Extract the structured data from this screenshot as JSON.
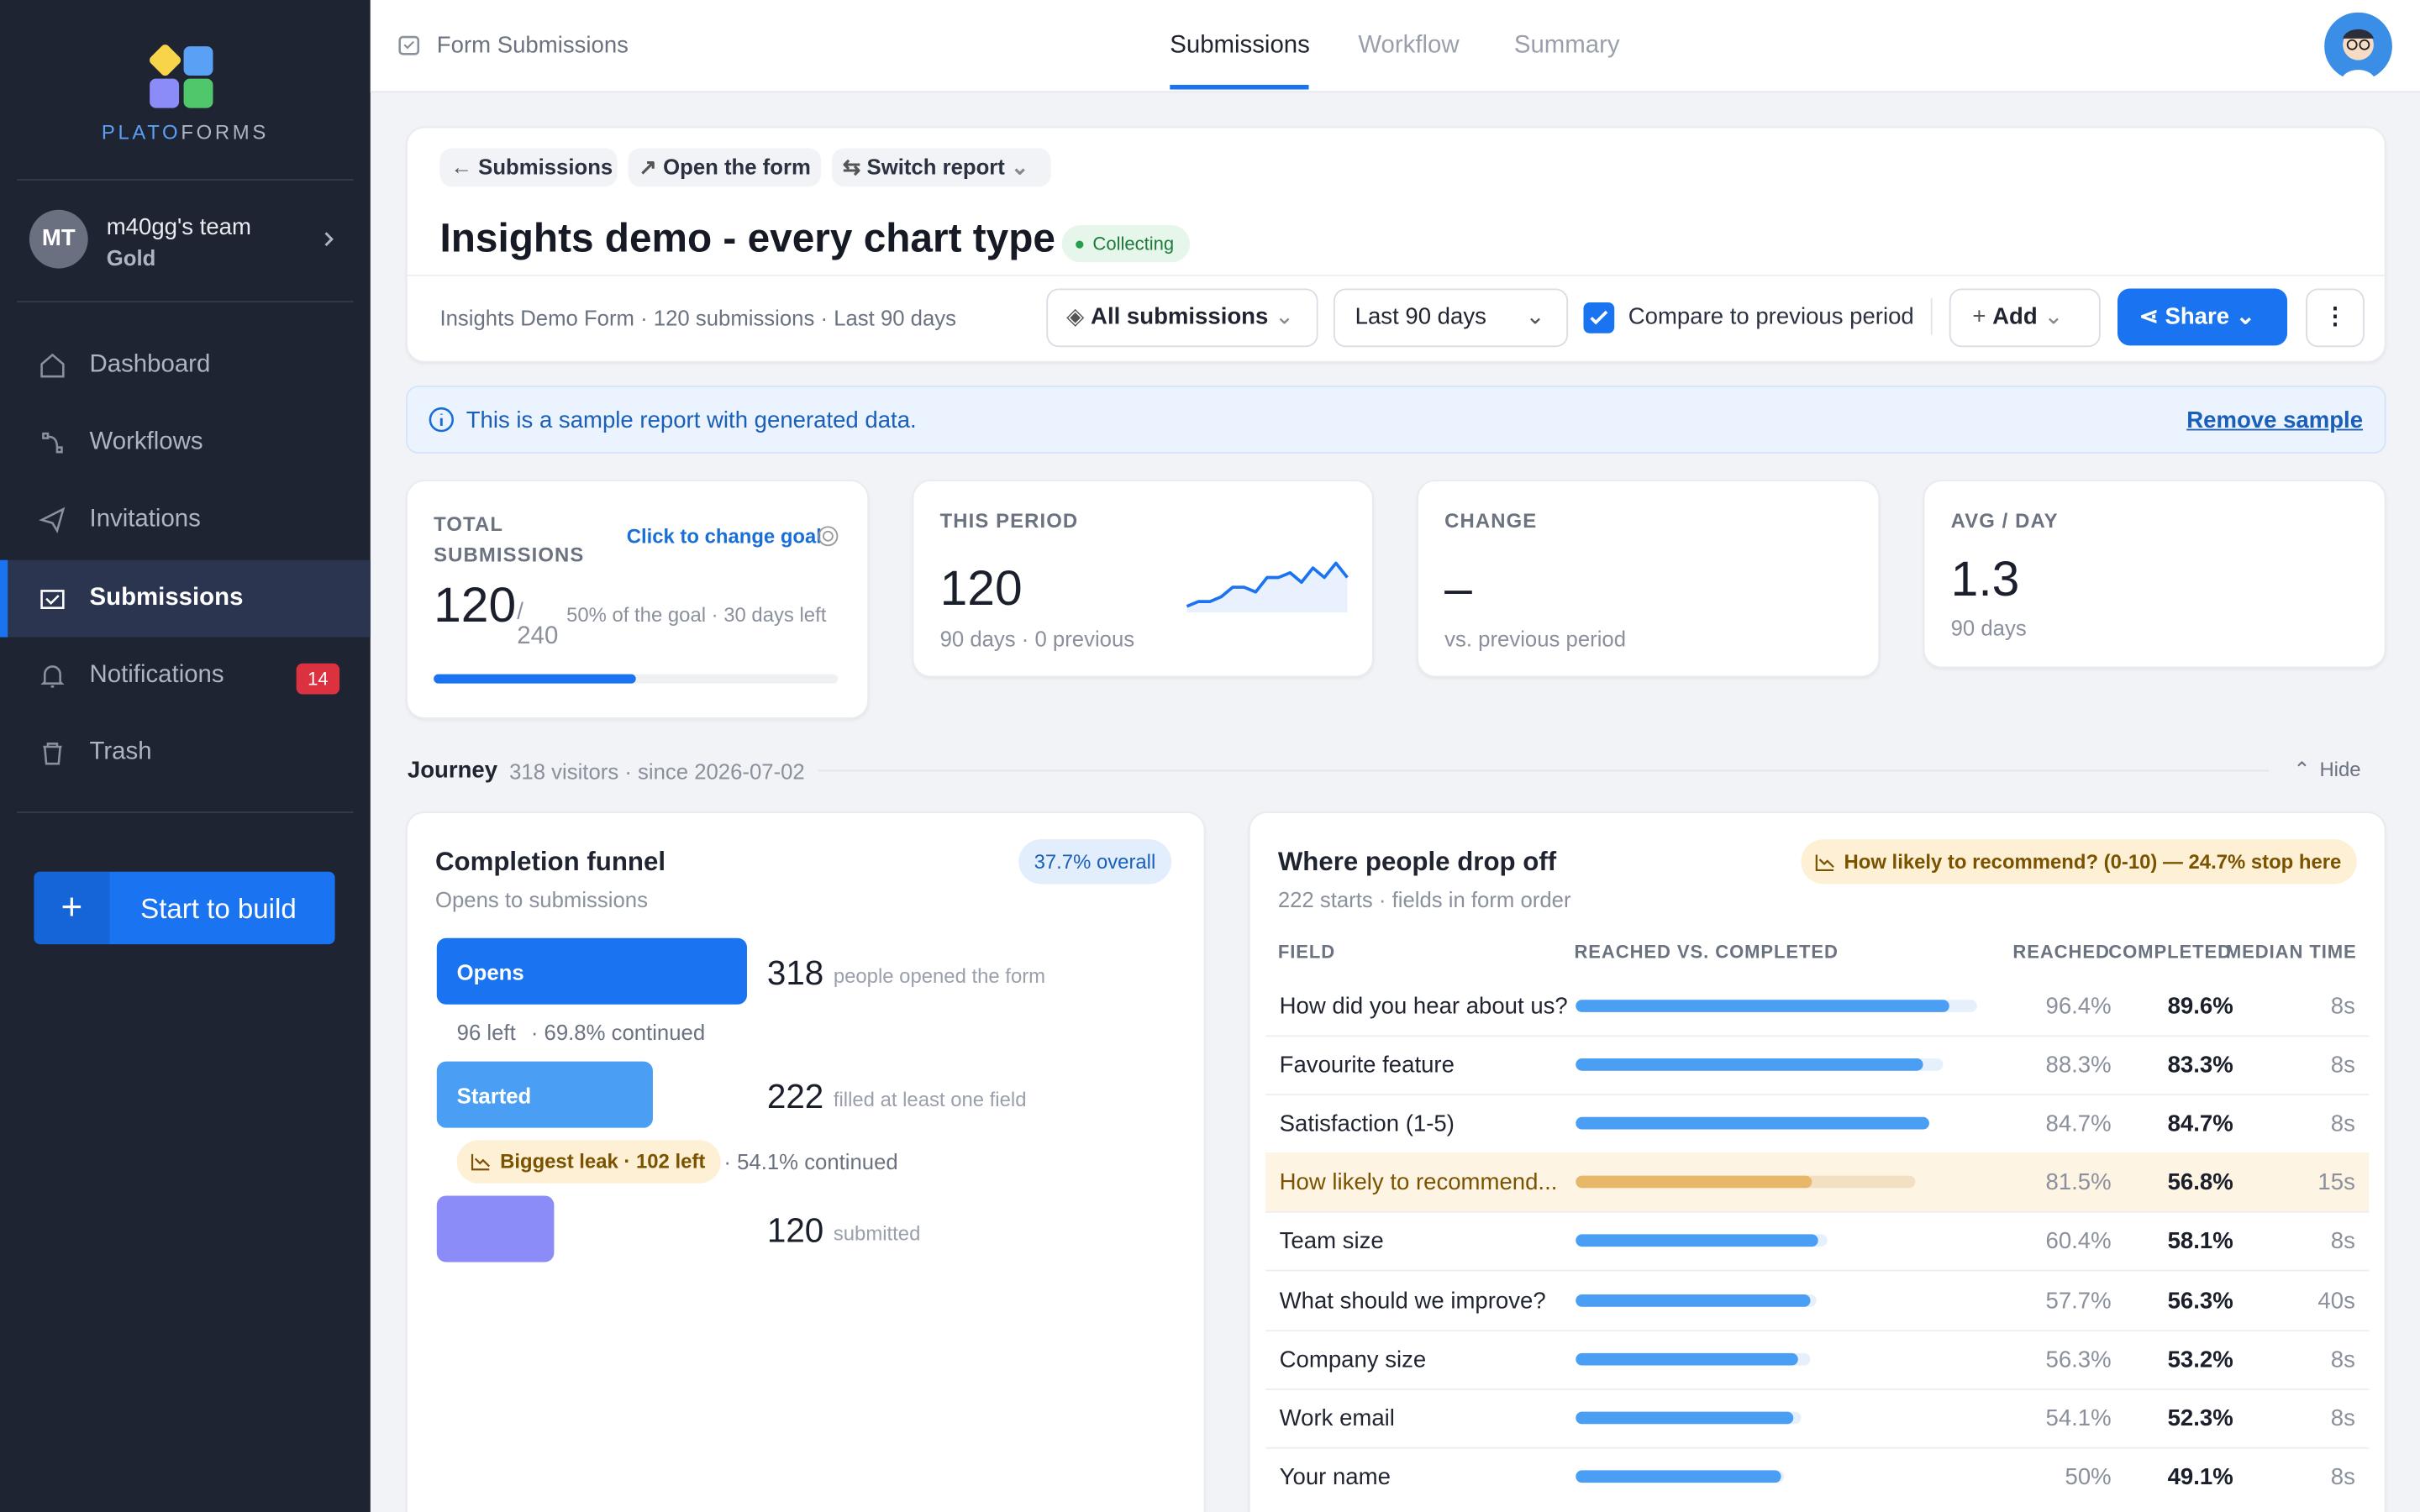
{
  "sidebar": {
    "logo": {
      "first": "PLATO",
      "second": "FORMS"
    },
    "team": {
      "initials": "MT",
      "name": "m40gg's team",
      "plan": "Gold"
    },
    "nav": [
      {
        "label": "Dashboard"
      },
      {
        "label": "Workflows"
      },
      {
        "label": "Invitations"
      },
      {
        "label": "Submissions",
        "active": true
      },
      {
        "label": "Notifications",
        "badge": 14
      },
      {
        "label": "Trash"
      }
    ],
    "cta": {
      "icon": "+",
      "label": "Start to build"
    }
  },
  "header": {
    "section": "Form Submissions",
    "tabs": [
      "Submissions",
      "Workflow",
      "Summary"
    ]
  },
  "report": {
    "breadcrumbs": [
      "Submissions",
      "Open the form",
      "Switch report"
    ],
    "title": "Insights demo - every chart type",
    "status": "Collecting",
    "meta": "Insights Demo Form · 120 submissions · Last 90 days",
    "controls": {
      "segment": "All submissions",
      "range": "Last 90 days",
      "compare": "Compare to previous period",
      "add": "Add",
      "share": "Share"
    }
  },
  "notice": {
    "text": "This is a sample report with generated data.",
    "action": "Remove sample"
  },
  "kpis": {
    "total": {
      "label": "TOTAL SUBMISSIONS",
      "action": "Click to change goal",
      "value": 120,
      "separator": "/",
      "goal": 240,
      "note": "50% of the goal · 30 days left"
    },
    "period": {
      "label": "THIS PERIOD",
      "value": 120,
      "note": "90 days · 0 previous",
      "sparkline": [
        1,
        2,
        2,
        3,
        5,
        5,
        4,
        7,
        7,
        8,
        6,
        9,
        7,
        10,
        7
      ]
    },
    "change": {
      "label": "CHANGE",
      "value": "–",
      "note": "vs. previous period"
    },
    "avg": {
      "label": "AVG / DAY",
      "value": 1.3,
      "note": "90 days"
    }
  },
  "journey": {
    "title": "Journey",
    "meta": "318 visitors · since 2026-07-02",
    "toggle": "Hide"
  },
  "funnel": {
    "title": "Completion funnel",
    "subtitle": "Opens to submissions",
    "badge": "37.7% overall",
    "steps": [
      {
        "label": "Opens",
        "value": 318,
        "desc": "people opened the form",
        "color": "#1a73f0"
      },
      {
        "label": "Started",
        "value": 222,
        "desc": "filled at least one field",
        "color": "#4a9ef3"
      },
      {
        "value": 120,
        "desc": "submitted",
        "color": "#8b8cf8"
      }
    ],
    "gaps": [
      {
        "left": "96 left",
        "continued": "· 69.8% continued"
      },
      {
        "leak": "Biggest leak · 102 left",
        "continued": "· 54.1% continued"
      }
    ]
  },
  "dropoff": {
    "title": "Where people drop off",
    "subtitle": "222 starts · fields in form order",
    "alert": "How likely to recommend? (0-10) — 24.7% stop here",
    "columns": [
      "FIELD",
      "REACHED VS. COMPLETED",
      "REACHED",
      "COMPLETED",
      "MEDIAN TIME"
    ],
    "rows": [
      {
        "field": "How did you hear about us?",
        "reached": 96.4,
        "reached_label": "96.4%",
        "completed": 89.6,
        "completed_label": "89.6%",
        "median": "8s"
      },
      {
        "field": "Favourite feature",
        "reached": 88.3,
        "reached_label": "88.3%",
        "completed": 83.3,
        "completed_label": "83.3%",
        "median": "8s"
      },
      {
        "field": "Satisfaction (1-5)",
        "reached": 84.7,
        "reached_label": "84.7%",
        "completed": 84.7,
        "completed_label": "84.7%",
        "median": "8s"
      },
      {
        "field": "How likely to recommend...",
        "reached": 81.5,
        "reached_label": "81.5%",
        "completed": 56.8,
        "completed_label": "56.8%",
        "median": "15s",
        "highlight": true
      },
      {
        "field": "Team size",
        "reached": 60.4,
        "reached_label": "60.4%",
        "completed": 58.1,
        "completed_label": "58.1%",
        "median": "8s"
      },
      {
        "field": "What should we improve?",
        "reached": 57.7,
        "reached_label": "57.7%",
        "completed": 56.3,
        "completed_label": "56.3%",
        "median": "40s"
      },
      {
        "field": "Company size",
        "reached": 56.3,
        "reached_label": "56.3%",
        "completed": 53.2,
        "completed_label": "53.2%",
        "median": "8s"
      },
      {
        "field": "Work email",
        "reached": 54.1,
        "reached_label": "54.1%",
        "completed": 52.3,
        "completed_label": "52.3%",
        "median": "8s"
      },
      {
        "field": "Your name",
        "reached": 50,
        "reached_label": "50%",
        "completed": 49.1,
        "completed_label": "49.1%",
        "median": "8s"
      }
    ]
  }
}
